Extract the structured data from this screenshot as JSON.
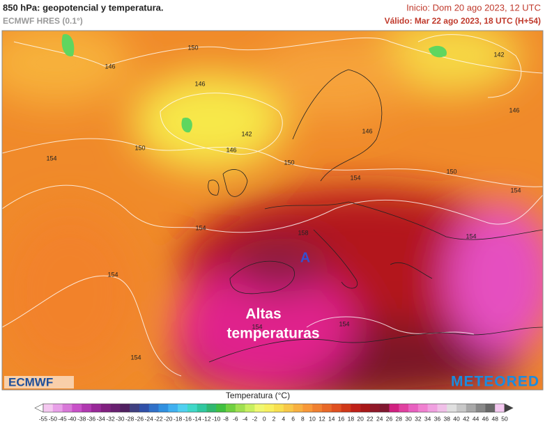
{
  "header": {
    "title": "850 hPa: geopotencial y temperatura.",
    "model": "ECMWF HRES (0.1°)",
    "init": "Inicio: Dom 20 ago 2023, 12 UTC",
    "valid": "Válido: Mar 22 ago 2023, 18 UTC (H+54)"
  },
  "map": {
    "contour_labels": [
      "150",
      "146",
      "146",
      "142",
      "146",
      "142",
      "146",
      "150",
      "146",
      "154",
      "150",
      "150",
      "154",
      "154",
      "154",
      "158",
      "154",
      "154",
      "154",
      "154",
      "154"
    ],
    "high_marker": "A",
    "annotation": [
      "Altas",
      "temperaturas"
    ]
  },
  "logos": {
    "left": "ECMWF",
    "right": "METEORED"
  },
  "legend": {
    "title": "Temperatura (°C)",
    "labels": [
      -55,
      -50,
      -45,
      -40,
      -38,
      -36,
      -34,
      -32,
      -30,
      -28,
      -26,
      -24,
      -22,
      -20,
      -18,
      -16,
      -14,
      -12,
      -10,
      -8,
      -6,
      -4,
      -2,
      0,
      2,
      4,
      6,
      8,
      10,
      12,
      14,
      16,
      18,
      20,
      22,
      24,
      26,
      28,
      30,
      32,
      34,
      36,
      38,
      40,
      42,
      44,
      46,
      48,
      50
    ]
  }
}
